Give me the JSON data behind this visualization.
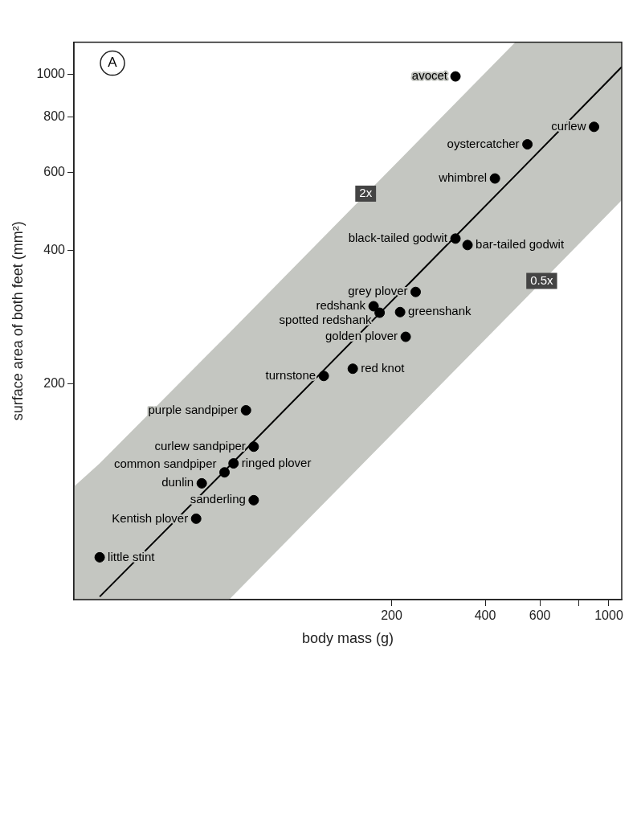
{
  "chart_data": {
    "type": "scatter",
    "xlabel": "body mass (g)",
    "ylabel": "surface area of both feet (mm²)",
    "log": "xy",
    "xlim": [
      19,
      1100
    ],
    "ylim": [
      65,
      1180
    ],
    "xticks": [
      200,
      400,
      600,
      {
        "value": 800,
        "label": null
      },
      1000
    ],
    "yticks": [
      200,
      400,
      600,
      800,
      1000
    ],
    "grid": false,
    "legend": false,
    "marker": "circle",
    "series": [
      {
        "type": "line",
        "color": "#000000",
        "line_style": "solid",
        "marker": "none",
        "x": [
          19,
          23,
          60,
          500,
          1100
        ],
        "values": [
          null,
          66,
          130,
          590,
          1038
        ],
        "lower": [
          65,
          65,
          65,
          295,
          519
        ],
        "upper": [
          117,
          132,
          260,
          1180,
          1180
        ]
      },
      {
        "type": "scatter",
        "color": "#000000",
        "x": [
          896,
          547,
          430,
          321,
          351,
          321,
          239,
          213,
          222,
          175,
          183,
          150,
          121,
          68,
          72,
          72,
          62,
          58,
          49,
          47,
          23
        ],
        "values": [
          760,
          694,
          581,
          988,
          411,
          425,
          322,
          290,
          255,
          299,
          289,
          216,
          208,
          174,
          144,
          109,
          132,
          126,
          119,
          99,
          81
        ]
      }
    ],
    "annotations": [
      "A",
      {
        "text": "2x",
        "x": 165,
        "y": 537
      },
      {
        "text": "0.5x",
        "x": 608,
        "y": 341
      },
      {
        "text": "curlew",
        "x": 896,
        "y": 760
      },
      {
        "text": "oystercatcher",
        "x": 547,
        "y": 694
      },
      {
        "text": "whimbrel",
        "x": 430,
        "y": 581
      },
      {
        "text": "avocet",
        "x": 321,
        "y": 988
      },
      {
        "text": "bar-tailed godwit",
        "x": 351,
        "y": 411
      },
      {
        "text": "black-tailed godwit",
        "x": 321,
        "y": 425
      },
      {
        "text": "grey plover",
        "x": 239,
        "y": 322
      },
      {
        "text": "greenshank",
        "x": 213,
        "y": 290
      },
      {
        "text": "golden plover",
        "x": 222,
        "y": 255
      },
      {
        "text": "redshank",
        "x": 175,
        "y": 299
      },
      {
        "text": "spotted redshank",
        "x": 183,
        "y": 289
      },
      {
        "text": "red knot",
        "x": 150,
        "y": 216
      },
      {
        "text": "turnstone",
        "x": 121,
        "y": 208
      },
      {
        "text": "purple sandpiper",
        "x": 68,
        "y": 174
      },
      {
        "text": "curlew sandpiper",
        "x": 72,
        "y": 144
      },
      {
        "text": "sanderling",
        "x": 72,
        "y": 109
      },
      {
        "text": "ringed plover",
        "x": 62,
        "y": 132
      },
      {
        "text": "common sandpiper",
        "x": 58,
        "y": 126
      },
      {
        "text": "dunlin",
        "x": 49,
        "y": 119
      },
      {
        "text": "Kentish plover",
        "x": 47,
        "y": 99
      },
      {
        "text": "little stint",
        "x": 23,
        "y": 81
      }
    ]
  }
}
